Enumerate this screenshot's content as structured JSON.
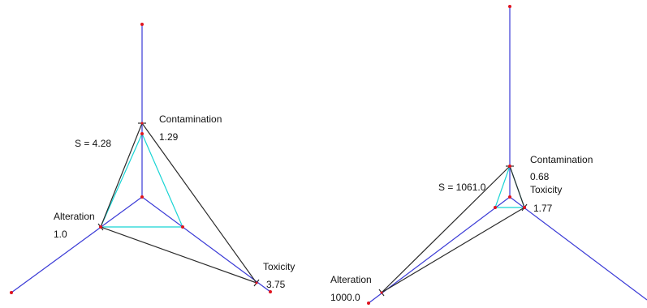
{
  "colors": {
    "axis": "#3a3ad6",
    "triangle_outer": "#2a2a2a",
    "triangle_inner": "#18d4d4",
    "point": "#e0141e"
  },
  "diagrams": [
    {
      "score_label": "S = 4.28",
      "axes": [
        {
          "name": "Contamination",
          "value": "1.29"
        },
        {
          "name": "Alteration",
          "value": "1.0"
        },
        {
          "name": "Toxicity",
          "value": "3.75"
        }
      ]
    },
    {
      "score_label": "S = 1061.0",
      "axes": [
        {
          "name": "Contamination",
          "value": "0.68"
        },
        {
          "name": "Alteration",
          "value": "1000.0"
        },
        {
          "name": "Toxicity",
          "value": "1.77"
        }
      ]
    }
  ]
}
